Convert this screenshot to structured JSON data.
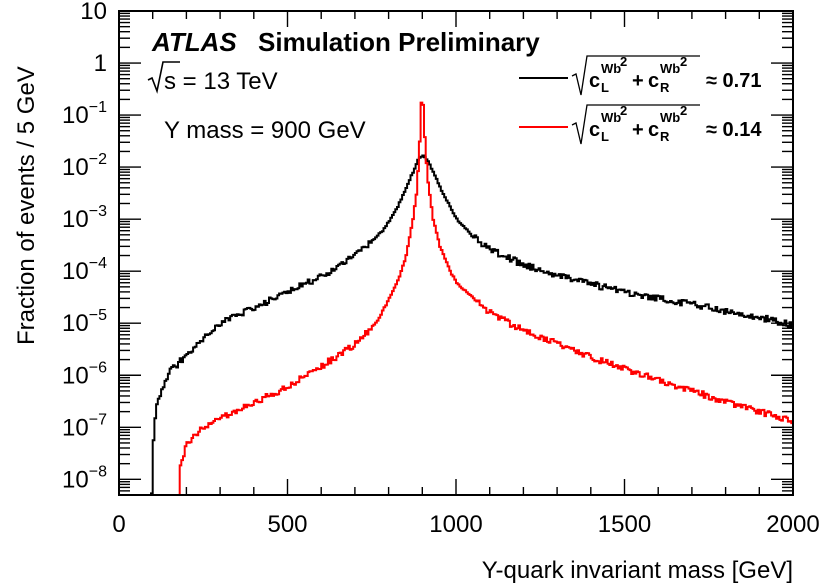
{
  "header": {
    "experiment": "ATLAS",
    "status": "Simulation Preliminary",
    "energy_value": "s = 13 TeV",
    "mass_label": "Y mass = 900 GeV"
  },
  "legend": {
    "entries": [
      {
        "series": 0,
        "sup": "Wb",
        "sub_l": "L",
        "sub_r": "R",
        "value": "≈ 0.71"
      },
      {
        "series": 1,
        "sup": "Wb",
        "sub_l": "L",
        "sub_r": "R",
        "value": "≈ 0.14"
      }
    ]
  },
  "chart_data": {
    "type": "line",
    "xlabel": "Y-quark invariant mass [GeV]",
    "ylabel": "Fraction of events / 5 GeV",
    "xlim": [
      0,
      2000
    ],
    "ylim": [
      5e-09,
      10
    ],
    "yscale": "log",
    "x_ticks": [
      {
        "value": 0,
        "label": "0"
      },
      {
        "value": 500,
        "label": "500"
      },
      {
        "value": 1000,
        "label": "1000"
      },
      {
        "value": 1500,
        "label": "1500"
      },
      {
        "value": 2000,
        "label": "2000"
      }
    ],
    "y_ticks": [
      {
        "value": 1e-08,
        "base": "10",
        "exp": "−8"
      },
      {
        "value": 1e-07,
        "base": "10",
        "exp": "−7"
      },
      {
        "value": 1e-06,
        "base": "10",
        "exp": "−6"
      },
      {
        "value": 1e-05,
        "base": "10",
        "exp": "−5"
      },
      {
        "value": 0.0001,
        "base": "10",
        "exp": "−4"
      },
      {
        "value": 0.001,
        "base": "10",
        "exp": "−3"
      },
      {
        "value": 0.01,
        "base": "10",
        "exp": "−2"
      },
      {
        "value": 0.1,
        "base": "10",
        "exp": "−1"
      },
      {
        "value": 1,
        "base": "1",
        "exp": ""
      },
      {
        "value": 10,
        "base": "10",
        "exp": ""
      }
    ],
    "bin_width": 5,
    "series": [
      {
        "color": "#000000",
        "points": [
          [
            95,
            5e-09
          ],
          [
            100,
            6e-08
          ],
          [
            110,
            3e-07
          ],
          [
            150,
            1.2e-06
          ],
          [
            200,
            2.5e-06
          ],
          [
            250,
            5e-06
          ],
          [
            300,
            1e-05
          ],
          [
            400,
            2e-05
          ],
          [
            500,
            4e-05
          ],
          [
            600,
            8e-05
          ],
          [
            700,
            0.0002
          ],
          [
            780,
            0.0006
          ],
          [
            820,
            0.0015
          ],
          [
            850,
            0.004
          ],
          [
            870,
            0.008
          ],
          [
            885,
            0.014
          ],
          [
            900,
            0.017
          ],
          [
            915,
            0.013
          ],
          [
            935,
            0.007
          ],
          [
            960,
            0.003
          ],
          [
            1000,
            0.001
          ],
          [
            1050,
            0.00045
          ],
          [
            1100,
            0.00026
          ],
          [
            1200,
            0.00013
          ],
          [
            1300,
            8.5e-05
          ],
          [
            1400,
            5.6e-05
          ],
          [
            1500,
            4e-05
          ],
          [
            1600,
            3e-05
          ],
          [
            1700,
            2.3e-05
          ],
          [
            1800,
            1.7e-05
          ],
          [
            1900,
            1.3e-05
          ],
          [
            2000,
            9e-06
          ]
        ]
      },
      {
        "color": "#ff0000",
        "points": [
          [
            175,
            5e-09
          ],
          [
            180,
            2e-08
          ],
          [
            200,
            5e-08
          ],
          [
            250,
            1e-07
          ],
          [
            300,
            1.5e-07
          ],
          [
            400,
            3e-07
          ],
          [
            500,
            6e-07
          ],
          [
            600,
            1.5e-06
          ],
          [
            700,
            4e-06
          ],
          [
            760,
            1e-05
          ],
          [
            800,
            3e-05
          ],
          [
            830,
            8e-05
          ],
          [
            850,
            0.0002
          ],
          [
            870,
            0.001
          ],
          [
            880,
            0.003
          ],
          [
            888,
            0.015
          ],
          [
            893,
            0.1
          ],
          [
            897,
            0.3
          ],
          [
            902,
            0.1
          ],
          [
            907,
            0.02
          ],
          [
            915,
            0.005
          ],
          [
            930,
            0.001
          ],
          [
            950,
            0.0003
          ],
          [
            980,
            0.0001
          ],
          [
            1000,
            6e-05
          ],
          [
            1050,
            3e-05
          ],
          [
            1100,
            1.6e-05
          ],
          [
            1200,
            7e-06
          ],
          [
            1300,
            4e-06
          ],
          [
            1400,
            2.2e-06
          ],
          [
            1500,
            1.3e-06
          ],
          [
            1600,
            8e-07
          ],
          [
            1700,
            5e-07
          ],
          [
            1800,
            3e-07
          ],
          [
            1900,
            2e-07
          ],
          [
            2000,
            1.3e-07
          ]
        ]
      }
    ]
  }
}
